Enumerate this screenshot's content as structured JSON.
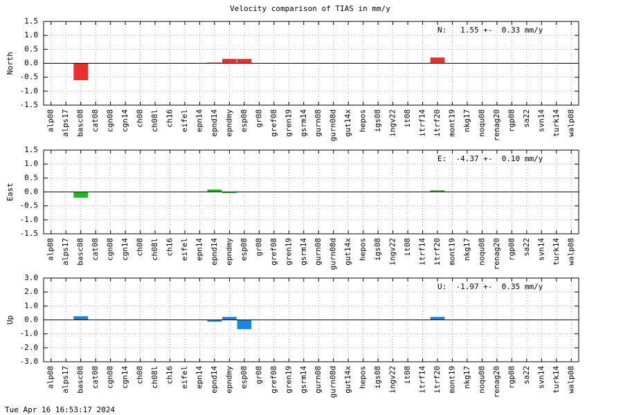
{
  "title": "Velocity comparison of TIAS in mm/y",
  "footer": "Tue Apr 16 16:53:17 2024",
  "chart_data": [
    {
      "type": "bar",
      "ylabel": "North",
      "annotation": "N:   1.55 +-  0.33 mm/y",
      "color": "#e8302f",
      "grid": true,
      "categories": [
        "alp08",
        "alps17",
        "basc08",
        "cat08",
        "cgn08",
        "cgn14",
        "ch08",
        "ch08l",
        "ch16",
        "eifel",
        "epn14",
        "epnd14",
        "epndmy",
        "esp08",
        "gr08",
        "gref08",
        "gren19",
        "gsrm14",
        "gurn08",
        "gurn08d",
        "gut14x",
        "hepos",
        "igs08",
        "ingv22",
        "it08",
        "itrf14",
        "itrf20",
        "mont19",
        "nkg17",
        "noqu08",
        "renag20",
        "rgp08",
        "sa22",
        "svn14",
        "turk14",
        "walp08"
      ],
      "values": [
        0,
        0,
        -0.6,
        0,
        0,
        0,
        0,
        0,
        0,
        0,
        0,
        0.02,
        0.15,
        0.15,
        0,
        0,
        0,
        0,
        0,
        0,
        0,
        0,
        0,
        0,
        0,
        0,
        0.2,
        0,
        0,
        0,
        0,
        0,
        0,
        0,
        0,
        0
      ],
      "ylim": [
        -1.5,
        1.5
      ],
      "yticks": [
        1.5,
        {
          "value": 1,
          "label": "1.0"
        },
        0.5,
        {
          "value": 0,
          "label": "0.0"
        },
        -0.5,
        {
          "value": -1,
          "label": "-1.0"
        },
        -1.5
      ]
    },
    {
      "type": "bar",
      "ylabel": "East",
      "annotation": "E:  -4.37 +-  0.10 mm/y",
      "color": "#22b522",
      "grid": true,
      "categories": [
        "alp08",
        "alps17",
        "basc08",
        "cat08",
        "cgn08",
        "cgn14",
        "ch08",
        "ch08l",
        "ch16",
        "eifel",
        "epn14",
        "epnd14",
        "epndmy",
        "esp08",
        "gr08",
        "gref08",
        "gren19",
        "gsrm14",
        "gurn08",
        "gurn08d",
        "gut14x",
        "hepos",
        "igs08",
        "ingv22",
        "it08",
        "itrf14",
        "itrf20",
        "mont19",
        "nkg17",
        "noqu08",
        "renag20",
        "rgp08",
        "sa22",
        "svn14",
        "turk14",
        "walp08"
      ],
      "values": [
        0,
        0,
        -0.2,
        0,
        0,
        0,
        0,
        0,
        0,
        0,
        0,
        0.08,
        -0.03,
        0,
        0,
        0,
        0,
        0,
        0,
        0,
        0,
        0,
        0,
        0,
        0,
        0,
        0.05,
        0,
        0,
        0,
        0,
        0,
        0,
        0,
        0,
        0
      ],
      "ylim": [
        -1.5,
        1.5
      ],
      "yticks": [
        1.5,
        {
          "value": 1,
          "label": "1.0"
        },
        0.5,
        {
          "value": 0,
          "label": "0.0"
        },
        -0.5,
        {
          "value": -1,
          "label": "-1.0"
        },
        -1.5
      ]
    },
    {
      "type": "bar",
      "ylabel": "Up",
      "annotation": "U:  -1.97 +-  0.35 mm/y",
      "color": "#1a87e8",
      "grid": true,
      "categories": [
        "alp08",
        "alps17",
        "basc08",
        "cat08",
        "cgn08",
        "cgn14",
        "ch08",
        "ch08l",
        "ch16",
        "eifel",
        "epn14",
        "epnd14",
        "epndmy",
        "esp08",
        "gr08",
        "gref08",
        "gren19",
        "gsrm14",
        "gurn08",
        "gurn08d",
        "gut14x",
        "hepos",
        "igs08",
        "ingv22",
        "it08",
        "itrf14",
        "itrf20",
        "mont19",
        "nkg17",
        "noqu08",
        "renag20",
        "rgp08",
        "sa22",
        "svn14",
        "turk14",
        "walp08"
      ],
      "values": [
        0,
        0,
        0.25,
        0,
        0,
        0,
        0,
        0,
        0,
        0,
        0,
        -0.12,
        0.2,
        -0.65,
        0,
        0,
        0,
        0,
        0,
        0,
        0,
        0,
        0,
        0,
        0,
        0,
        0.2,
        0,
        0,
        0,
        0,
        0,
        0,
        0,
        0,
        0
      ],
      "ylim": [
        -3,
        3
      ],
      "yticks": [
        {
          "value": 3,
          "label": "3.0"
        },
        {
          "value": 2,
          "label": "2.0"
        },
        {
          "value": 1,
          "label": "1.0"
        },
        {
          "value": 0,
          "label": "0.0"
        },
        {
          "value": -1,
          "label": "-1.0"
        },
        {
          "value": -2,
          "label": "-2.0"
        },
        {
          "value": -3,
          "label": "-3.0"
        }
      ]
    }
  ]
}
